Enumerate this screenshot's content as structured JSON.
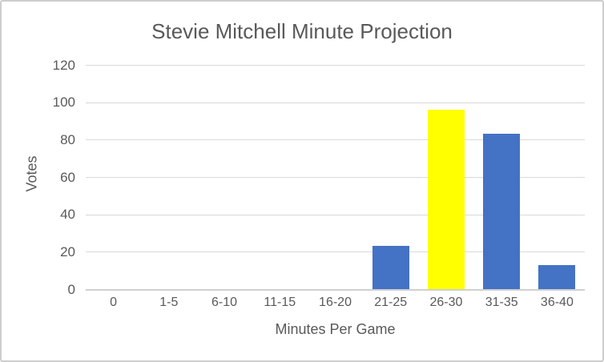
{
  "window": {
    "background_color": "#FFFFFF",
    "border_color": "#CDCDCD"
  },
  "chart_data": {
    "type": "bar",
    "title": "Stevie Mitchell Minute Projection",
    "xlabel": "Minutes Per Game",
    "ylabel": "Votes",
    "categories": [
      "0",
      "1-5",
      "6-10",
      "11-15",
      "16-20",
      "21-25",
      "26-30",
      "31-35",
      "36-40"
    ],
    "values": [
      0,
      0,
      0,
      0,
      0,
      23,
      96,
      83,
      13
    ],
    "ylim": [
      0,
      120
    ],
    "yticks": [
      0,
      20,
      40,
      60,
      80,
      100,
      120
    ],
    "grid": true,
    "legend": "none",
    "bar_color": "#4472C4",
    "highlight_index": 6,
    "highlight_color": "#FFFF00",
    "gridline_color": "#D9D9D9",
    "axis_line_color": "#D0D0D0",
    "text_color": "#595959"
  }
}
